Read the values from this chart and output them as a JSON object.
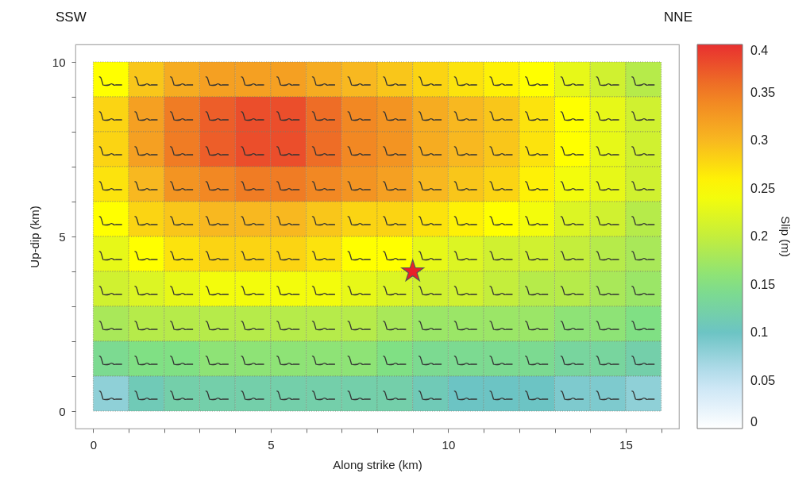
{
  "chart_data": {
    "type": "heatmap",
    "xlabel": "Along strike (km)",
    "ylabel": "Up-dip (km)",
    "clabel": "Slip (m)",
    "annotations": [
      "SSW",
      "NNE"
    ],
    "x": [
      0.5,
      1.5,
      2.5,
      3.5,
      4.5,
      5.5,
      6.5,
      7.5,
      8.5,
      9.5,
      10.5,
      11.5,
      12.5,
      13.5,
      14.5,
      15.5
    ],
    "y": [
      9.5,
      8.5,
      7.5,
      6.5,
      5.5,
      4.5,
      3.5,
      2.5,
      1.5,
      0.5
    ],
    "cells": [
      [
        0.25,
        0.29,
        0.31,
        0.32,
        0.32,
        0.32,
        0.31,
        0.3,
        0.29,
        0.28,
        0.27,
        0.26,
        0.25,
        0.23,
        0.21,
        0.19
      ],
      [
        0.28,
        0.32,
        0.35,
        0.37,
        0.38,
        0.38,
        0.36,
        0.34,
        0.33,
        0.31,
        0.3,
        0.29,
        0.27,
        0.25,
        0.23,
        0.21
      ],
      [
        0.28,
        0.32,
        0.35,
        0.37,
        0.38,
        0.38,
        0.36,
        0.34,
        0.33,
        0.31,
        0.3,
        0.29,
        0.27,
        0.25,
        0.23,
        0.21
      ],
      [
        0.27,
        0.3,
        0.33,
        0.34,
        0.35,
        0.35,
        0.34,
        0.33,
        0.32,
        0.3,
        0.29,
        0.28,
        0.26,
        0.24,
        0.23,
        0.21
      ],
      [
        0.25,
        0.28,
        0.29,
        0.3,
        0.3,
        0.3,
        0.29,
        0.28,
        0.28,
        0.27,
        0.26,
        0.25,
        0.24,
        0.22,
        0.21,
        0.19
      ],
      [
        0.23,
        0.25,
        0.27,
        0.28,
        0.28,
        0.28,
        0.27,
        0.25,
        0.25,
        0.23,
        0.22,
        0.21,
        0.21,
        0.2,
        0.19,
        0.18
      ],
      [
        0.21,
        0.22,
        0.23,
        0.24,
        0.24,
        0.24,
        0.24,
        0.23,
        0.22,
        0.21,
        0.21,
        0.2,
        0.19,
        0.19,
        0.18,
        0.17
      ],
      [
        0.18,
        0.19,
        0.19,
        0.19,
        0.19,
        0.19,
        0.19,
        0.19,
        0.18,
        0.17,
        0.17,
        0.17,
        0.17,
        0.16,
        0.16,
        0.15
      ],
      [
        0.14,
        0.15,
        0.15,
        0.16,
        0.16,
        0.16,
        0.16,
        0.16,
        0.15,
        0.14,
        0.14,
        0.14,
        0.14,
        0.13,
        0.13,
        0.12
      ],
      [
        0.08,
        0.11,
        0.12,
        0.12,
        0.12,
        0.12,
        0.12,
        0.12,
        0.12,
        0.11,
        0.1,
        0.1,
        0.1,
        0.09,
        0.09,
        0.08
      ]
    ],
    "clim": [
      0,
      0.4
    ],
    "cticks": [
      0,
      0.05,
      0.1,
      0.15,
      0.2,
      0.25,
      0.3,
      0.35,
      0.4
    ],
    "xlim": [
      -0.5,
      16.5
    ],
    "ylim": [
      -0.5,
      10.5
    ],
    "xticks": [
      0,
      {
        "value": 1,
        "label": null
      },
      {
        "value": 2,
        "label": null
      },
      {
        "value": 3,
        "label": null
      },
      {
        "value": 4,
        "label": null
      },
      5,
      {
        "value": 6,
        "label": null
      },
      {
        "value": 7,
        "label": null
      },
      {
        "value": 8,
        "label": null
      },
      {
        "value": 9,
        "label": null
      },
      10,
      {
        "value": 11,
        "label": null
      },
      {
        "value": 12,
        "label": null
      },
      {
        "value": 13,
        "label": null
      },
      {
        "value": 14,
        "label": null
      },
      15,
      {
        "value": 16,
        "label": null
      }
    ],
    "yticks": [
      0,
      {
        "value": 1,
        "label": null
      },
      {
        "value": 2,
        "label": null
      },
      {
        "value": 3,
        "label": null
      },
      {
        "value": 4,
        "label": null
      },
      5,
      {
        "value": 6,
        "label": null
      },
      {
        "value": 7,
        "label": null
      },
      {
        "value": 8,
        "label": null
      },
      {
        "value": 9,
        "label": null
      },
      10
    ],
    "marker": "star",
    "series": [
      {
        "type": "scatter",
        "x": [
          9
        ],
        "values": [
          4
        ],
        "color": "#e8202a"
      }
    ]
  }
}
